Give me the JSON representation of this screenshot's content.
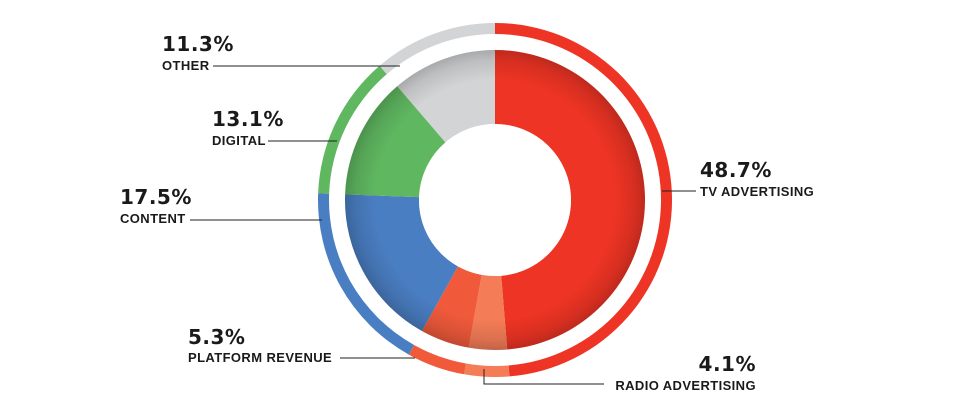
{
  "chart_data": {
    "type": "pie",
    "title": "",
    "slices": [
      {
        "label": "TV ADVERTISING",
        "value": 48.7,
        "display": "48.7%",
        "color": "#ee3424"
      },
      {
        "label": "RADIO ADVERTISING",
        "value": 4.1,
        "display": "4.1%",
        "color": "#f47c57"
      },
      {
        "label": "PLATFORM REVENUE",
        "value": 5.3,
        "display": "5.3%",
        "color": "#f05a3b"
      },
      {
        "label": "CONTENT",
        "value": 17.5,
        "display": "17.5%",
        "color": "#4a7ec2"
      },
      {
        "label": "DIGITAL",
        "value": 13.1,
        "display": "13.1%",
        "color": "#5fb760"
      },
      {
        "label": "OTHER",
        "value": 11.3,
        "display": "11.3%",
        "color": "#d3d4d6"
      }
    ],
    "style": "donut with outer ring",
    "legend": "none"
  }
}
